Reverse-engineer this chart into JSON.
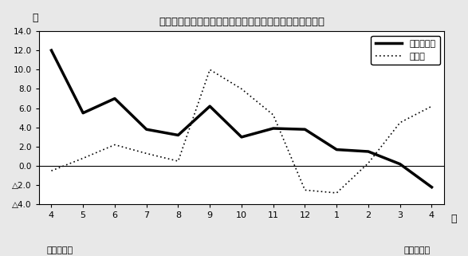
{
  "title": "第２図　所定外労働時間対前年比の推移（規模５人以上）",
  "x_labels": [
    "4",
    "5",
    "6",
    "7",
    "8",
    "9",
    "10",
    "11",
    "12",
    "1",
    "2",
    "3",
    "4"
  ],
  "x_bottom_left": "平成１８年",
  "x_bottom_right": "平成１９年",
  "x_axis_label": "月",
  "y_label": "％",
  "ylim": [
    -4.0,
    14.0
  ],
  "yticks": [
    -4.0,
    -2.0,
    0.0,
    2.0,
    4.0,
    6.0,
    8.0,
    10.0,
    12.0,
    14.0
  ],
  "series1_label": "調査産業計",
  "series1_values": [
    12.0,
    5.5,
    7.0,
    3.8,
    3.2,
    6.2,
    3.0,
    3.9,
    3.8,
    1.7,
    1.5,
    0.2,
    -2.2
  ],
  "series2_label": "製造業",
  "series2_values": [
    -0.5,
    0.8,
    2.2,
    1.3,
    0.5,
    10.0,
    8.0,
    5.3,
    -2.5,
    -2.8,
    0.3,
    4.5,
    6.2
  ],
  "series1_color": "#000000",
  "series2_color": "#000000",
  "background_color": "#e8e8e8",
  "plot_bg_color": "#ffffff",
  "border_color": "#000000"
}
